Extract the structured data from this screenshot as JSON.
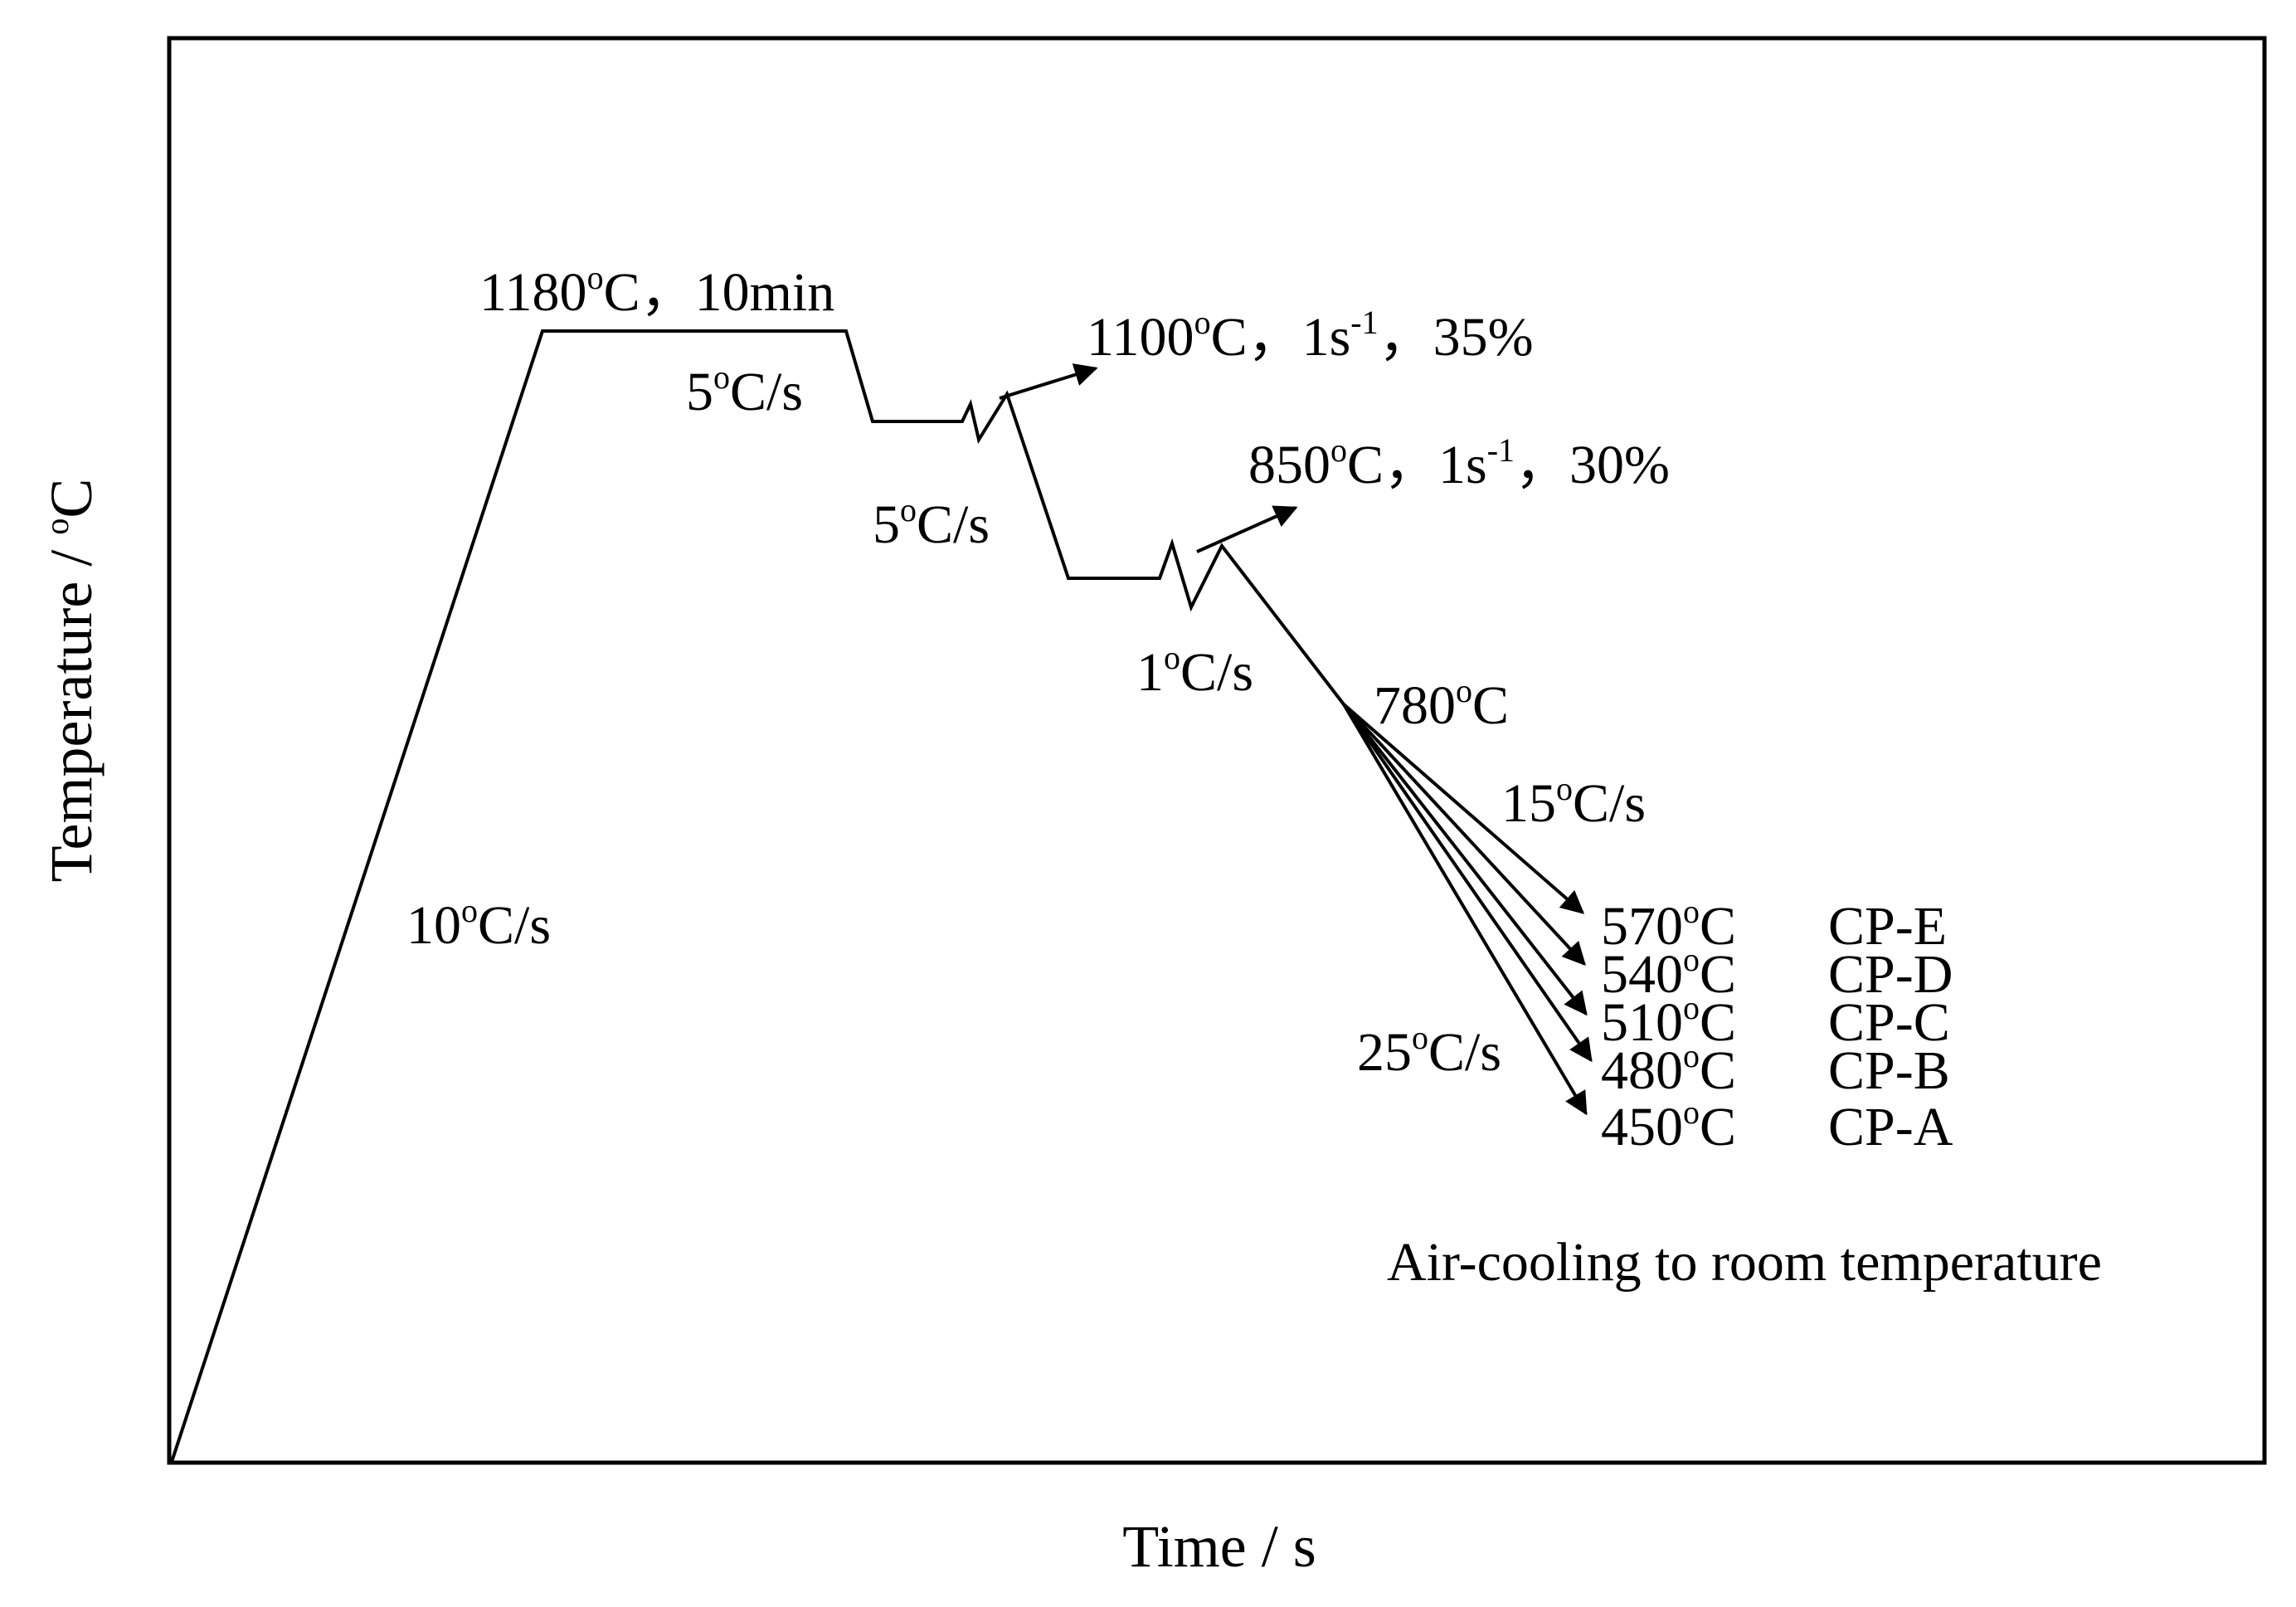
{
  "axes": {
    "x_label": "Time / s",
    "y_label_prefix": "Temperature / ",
    "y_label_sup": "o",
    "y_label_suffix": "C"
  },
  "labels": {
    "heating_rate": {
      "pre": "10",
      "sup": "o",
      "post": "C/s"
    },
    "soak": {
      "pre": "1180",
      "sup": "o",
      "post": "C，10min"
    },
    "cool_1": {
      "pre": "5",
      "sup": "o",
      "post": "C/s"
    },
    "pass_1": {
      "pre": "1100",
      "sup": "o",
      "mid": "C，1s",
      "sup2": "-1",
      "post": "，35%"
    },
    "cool_2": {
      "pre": "5",
      "sup": "o",
      "post": "C/s"
    },
    "pass_2": {
      "pre": "850",
      "sup": "o",
      "mid": "C，1s",
      "sup2": "-1",
      "post": "，30%"
    },
    "cool_3": {
      "pre": "1",
      "sup": "o",
      "post": "C/s"
    },
    "finish_temp": {
      "pre": "780",
      "sup": "o",
      "post": "C"
    },
    "fast_rate_low": {
      "pre": "15",
      "sup": "o",
      "post": "C/s"
    },
    "fast_rate_high": {
      "pre": "25",
      "sup": "o",
      "post": "C/s"
    },
    "air_cooling": "Air-cooling to room temperature"
  },
  "end_temps": [
    {
      "pre": "570",
      "sup": "o",
      "post": "C",
      "sample": "CP-E"
    },
    {
      "pre": "540",
      "sup": "o",
      "post": "C",
      "sample": "CP-D"
    },
    {
      "pre": "510",
      "sup": "o",
      "post": "C",
      "sample": "CP-C"
    },
    {
      "pre": "480",
      "sup": "o",
      "post": "C",
      "sample": "CP-B"
    },
    {
      "pre": "450",
      "sup": "o",
      "post": "C",
      "sample": "CP-A"
    }
  ]
}
